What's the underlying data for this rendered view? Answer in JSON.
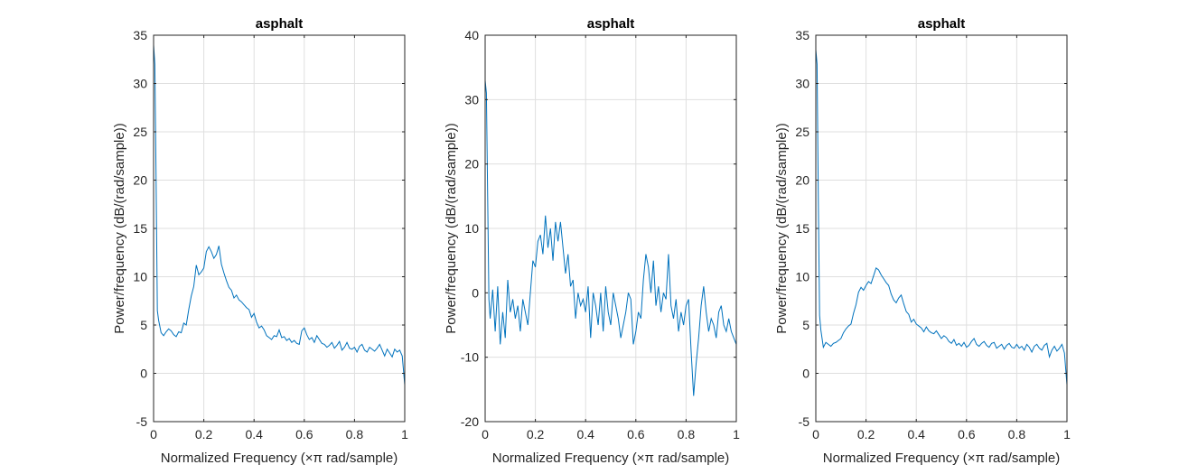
{
  "chart_data": [
    {
      "type": "line",
      "title": "asphalt",
      "xlabel": "Normalized Frequency  (×π rad/sample)",
      "ylabel": "Power/frequency (dB/(rad/sample))",
      "xlim": [
        0,
        1
      ],
      "ylim": [
        -5,
        35
      ],
      "xticks": [
        "0",
        "0.2",
        "0.4",
        "0.6",
        "0.8",
        "1"
      ],
      "yticks": [
        "-5",
        "0",
        "5",
        "10",
        "15",
        "20",
        "25",
        "30",
        "35"
      ],
      "grid": true,
      "line_color": "#0072BD",
      "series": [
        {
          "x": [
            0,
            0.005,
            0.01,
            0.015,
            0.02,
            0.03,
            0.04,
            0.05,
            0.06,
            0.07,
            0.08,
            0.09,
            0.1,
            0.11,
            0.12,
            0.13,
            0.14,
            0.15,
            0.16,
            0.17,
            0.18,
            0.19,
            0.2,
            0.21,
            0.22,
            0.23,
            0.24,
            0.25,
            0.26,
            0.27,
            0.28,
            0.29,
            0.3,
            0.31,
            0.32,
            0.33,
            0.34,
            0.35,
            0.36,
            0.37,
            0.38,
            0.39,
            0.4,
            0.41,
            0.42,
            0.43,
            0.44,
            0.45,
            0.46,
            0.47,
            0.48,
            0.49,
            0.5,
            0.51,
            0.52,
            0.53,
            0.54,
            0.55,
            0.56,
            0.57,
            0.58,
            0.59,
            0.6,
            0.61,
            0.62,
            0.63,
            0.64,
            0.65,
            0.66,
            0.67,
            0.68,
            0.69,
            0.7,
            0.71,
            0.72,
            0.73,
            0.74,
            0.75,
            0.76,
            0.77,
            0.78,
            0.79,
            0.8,
            0.81,
            0.82,
            0.83,
            0.84,
            0.85,
            0.86,
            0.87,
            0.88,
            0.89,
            0.9,
            0.91,
            0.92,
            0.93,
            0.94,
            0.95,
            0.96,
            0.97,
            0.98,
            0.99,
            1
          ],
          "y": [
            34,
            32,
            20,
            6.5,
            5.5,
            4.2,
            3.9,
            4.3,
            4.6,
            4.4,
            4.0,
            3.8,
            4.3,
            4.2,
            5.2,
            5.0,
            6.6,
            8.0,
            9.0,
            11.2,
            10.2,
            10.5,
            10.9,
            12.6,
            13.1,
            12.6,
            11.9,
            12.3,
            13.2,
            11.3,
            10.4,
            9.6,
            8.9,
            8.6,
            7.8,
            8.1,
            7.6,
            7.4,
            7.1,
            6.8,
            6.6,
            5.8,
            6.2,
            5.3,
            4.7,
            4.9,
            4.5,
            3.9,
            3.7,
            3.5,
            3.9,
            3.8,
            4.5,
            3.7,
            3.8,
            3.4,
            3.6,
            3.2,
            3.4,
            3.1,
            3.0,
            4.4,
            4.7,
            4.0,
            3.5,
            3.7,
            3.2,
            3.9,
            3.5,
            3.1,
            3.0,
            2.7,
            2.9,
            3.2,
            2.6,
            2.9,
            3.3,
            2.4,
            2.7,
            3.2,
            2.6,
            2.5,
            2.7,
            2.2,
            2.8,
            3.0,
            2.4,
            2.2,
            2.7,
            2.5,
            2.3,
            2.6,
            3.0,
            2.4,
            1.8,
            2.5,
            2.1,
            1.7,
            2.5,
            2.2,
            2.4,
            1.8,
            -1.2
          ]
        }
      ]
    },
    {
      "type": "line",
      "title": "asphalt",
      "xlabel": "Normalized Frequency  (×π rad/sample)",
      "ylabel": "Power/frequency (dB/(rad/sample))",
      "xlim": [
        0,
        1
      ],
      "ylim": [
        -20,
        40
      ],
      "xticks": [
        "0",
        "0.2",
        "0.4",
        "0.6",
        "0.8",
        "1"
      ],
      "yticks": [
        "-20",
        "-10",
        "0",
        "10",
        "20",
        "30",
        "40"
      ],
      "grid": true,
      "line_color": "#0072BD",
      "series": [
        {
          "x": [
            0,
            0.005,
            0.01,
            0.015,
            0.02,
            0.03,
            0.04,
            0.05,
            0.06,
            0.07,
            0.08,
            0.09,
            0.1,
            0.11,
            0.12,
            0.13,
            0.14,
            0.15,
            0.16,
            0.17,
            0.18,
            0.19,
            0.2,
            0.21,
            0.22,
            0.23,
            0.24,
            0.25,
            0.26,
            0.27,
            0.28,
            0.29,
            0.3,
            0.31,
            0.32,
            0.33,
            0.34,
            0.35,
            0.36,
            0.37,
            0.38,
            0.39,
            0.4,
            0.41,
            0.42,
            0.43,
            0.44,
            0.45,
            0.46,
            0.47,
            0.48,
            0.49,
            0.5,
            0.51,
            0.52,
            0.53,
            0.54,
            0.55,
            0.56,
            0.57,
            0.58,
            0.59,
            0.6,
            0.61,
            0.62,
            0.63,
            0.64,
            0.65,
            0.66,
            0.67,
            0.68,
            0.69,
            0.7,
            0.71,
            0.72,
            0.73,
            0.74,
            0.75,
            0.76,
            0.77,
            0.78,
            0.79,
            0.8,
            0.81,
            0.82,
            0.83,
            0.84,
            0.85,
            0.86,
            0.87,
            0.88,
            0.89,
            0.9,
            0.91,
            0.92,
            0.93,
            0.94,
            0.95,
            0.96,
            0.97,
            0.98,
            0.99,
            1
          ],
          "y": [
            33,
            31,
            15,
            -1,
            -4,
            0.5,
            -6,
            1,
            -8,
            -3,
            -7,
            2,
            -3,
            -1,
            -4,
            -2,
            -6,
            -1,
            -3,
            -5,
            0,
            5,
            4,
            8,
            9,
            6,
            12,
            7,
            10,
            5,
            11,
            8,
            11,
            7,
            3,
            6,
            1,
            2,
            -4,
            0,
            -2,
            -1,
            -3,
            1,
            -7,
            0,
            -2,
            -5,
            0,
            -6,
            1,
            -3,
            -5,
            0,
            -2,
            -4,
            -7,
            -5,
            -3,
            0,
            -1,
            -8,
            -6,
            -3,
            -4,
            2,
            6,
            4,
            0,
            5,
            -2,
            1,
            -3,
            0,
            -1,
            6,
            -2,
            -4,
            -1,
            -6,
            -3,
            -5,
            -2,
            -1,
            -9,
            -16,
            -11,
            -7,
            -2,
            1,
            -3,
            -6,
            -4,
            -5,
            -7,
            -3,
            -2,
            -5,
            -6,
            -4,
            -6,
            -7,
            -8
          ]
        }
      ]
    },
    {
      "type": "line",
      "title": "asphalt",
      "xlabel": "Normalized Frequency  (×π rad/sample)",
      "ylabel": "Power/frequency (dB/(rad/sample))",
      "xlim": [
        0,
        1
      ],
      "ylim": [
        -5,
        35
      ],
      "xticks": [
        "0",
        "0.2",
        "0.4",
        "0.6",
        "0.8",
        "1"
      ],
      "yticks": [
        "-5",
        "0",
        "5",
        "10",
        "15",
        "20",
        "25",
        "30",
        "35"
      ],
      "grid": true,
      "line_color": "#0072BD",
      "series": [
        {
          "x": [
            0,
            0.005,
            0.01,
            0.015,
            0.02,
            0.03,
            0.04,
            0.05,
            0.06,
            0.07,
            0.08,
            0.09,
            0.1,
            0.11,
            0.12,
            0.13,
            0.14,
            0.15,
            0.16,
            0.17,
            0.18,
            0.19,
            0.2,
            0.21,
            0.22,
            0.23,
            0.24,
            0.25,
            0.26,
            0.27,
            0.28,
            0.29,
            0.3,
            0.31,
            0.32,
            0.33,
            0.34,
            0.35,
            0.36,
            0.37,
            0.38,
            0.39,
            0.4,
            0.41,
            0.42,
            0.43,
            0.44,
            0.45,
            0.46,
            0.47,
            0.48,
            0.49,
            0.5,
            0.51,
            0.52,
            0.53,
            0.54,
            0.55,
            0.56,
            0.57,
            0.58,
            0.59,
            0.6,
            0.61,
            0.62,
            0.63,
            0.64,
            0.65,
            0.66,
            0.67,
            0.68,
            0.69,
            0.7,
            0.71,
            0.72,
            0.73,
            0.74,
            0.75,
            0.76,
            0.77,
            0.78,
            0.79,
            0.8,
            0.81,
            0.82,
            0.83,
            0.84,
            0.85,
            0.86,
            0.87,
            0.88,
            0.89,
            0.9,
            0.91,
            0.92,
            0.93,
            0.94,
            0.95,
            0.96,
            0.97,
            0.98,
            0.99,
            1
          ],
          "y": [
            33.5,
            32,
            18,
            6,
            4.5,
            2.7,
            3.2,
            3.0,
            2.8,
            3.1,
            3.2,
            3.4,
            3.6,
            4.2,
            4.6,
            4.9,
            5.1,
            6.2,
            7.1,
            8.4,
            8.9,
            8.6,
            9.1,
            9.5,
            9.3,
            10.1,
            10.9,
            10.7,
            10.2,
            9.8,
            9.4,
            9.1,
            8.2,
            7.6,
            7.3,
            7.8,
            8.1,
            7.2,
            6.4,
            6.1,
            5.3,
            5.6,
            5.1,
            4.9,
            4.7,
            4.3,
            4.8,
            4.4,
            4.2,
            4.1,
            4.4,
            4.0,
            3.6,
            3.9,
            3.7,
            3.3,
            3.1,
            3.5,
            2.9,
            3.1,
            2.8,
            3.2,
            2.7,
            2.9,
            3.3,
            3.6,
            3.0,
            2.8,
            3.1,
            3.3,
            2.9,
            2.7,
            3.1,
            3.2,
            2.6,
            2.8,
            3.0,
            2.5,
            2.9,
            3.1,
            2.7,
            2.6,
            3.0,
            2.6,
            2.8,
            2.4,
            3.0,
            2.7,
            2.2,
            2.8,
            3.0,
            2.6,
            2.4,
            2.9,
            3.1,
            1.7,
            2.4,
            2.8,
            2.3,
            2.6,
            3.0,
            2.1,
            -1.2
          ]
        }
      ]
    }
  ]
}
